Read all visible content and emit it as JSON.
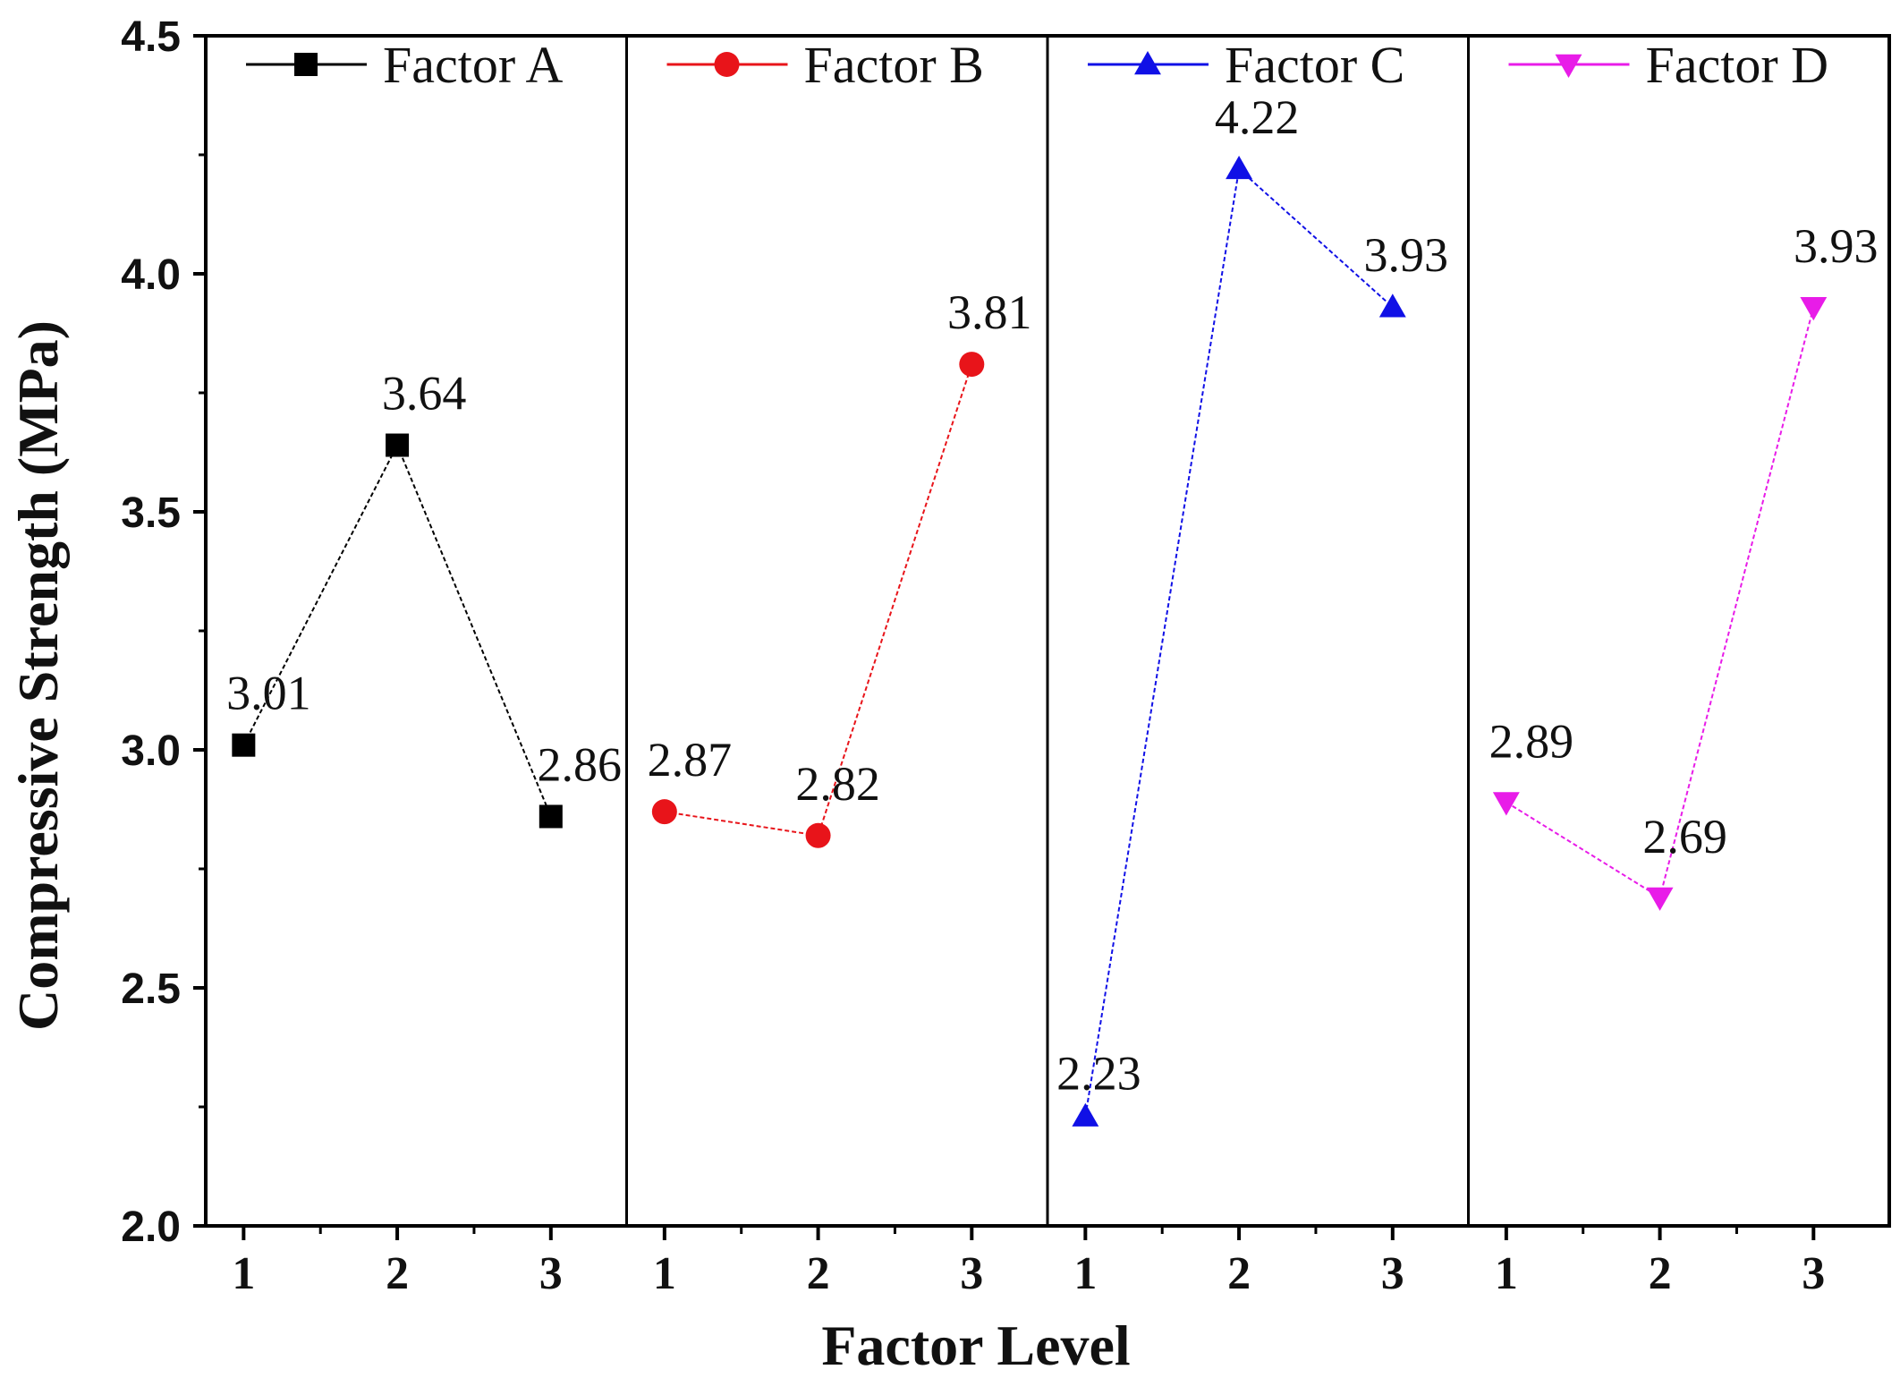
{
  "chart_data": {
    "type": "line",
    "xlabel": "Factor Level",
    "ylabel": "Compressive Strength (MPa)",
    "ylim": [
      2.0,
      4.5
    ],
    "yticks": [
      "2.0",
      "2.5",
      "3.0",
      "3.5",
      "4.0",
      "4.5"
    ],
    "ytick_values": [
      2.0,
      2.5,
      3.0,
      3.5,
      4.0,
      4.5
    ],
    "categories": [
      "1",
      "2",
      "3"
    ],
    "grid": false,
    "series": [
      {
        "name": "Factor A",
        "color": "#000000",
        "marker": "square",
        "values": [
          3.01,
          3.64,
          2.86
        ],
        "labels": [
          "3.01",
          "3.64",
          "2.86"
        ]
      },
      {
        "name": "Factor B",
        "color": "#e8141a",
        "marker": "circle",
        "values": [
          2.87,
          2.82,
          3.81
        ],
        "labels": [
          "2.87",
          "2.82",
          "3.81"
        ]
      },
      {
        "name": "Factor C",
        "color": "#1010e6",
        "marker": "triangle-up",
        "values": [
          2.23,
          4.22,
          3.93
        ],
        "labels": [
          "2.23",
          "4.22",
          "3.93"
        ]
      },
      {
        "name": "Factor D",
        "color": "#e81ce8",
        "marker": "triangle-down",
        "values": [
          2.89,
          2.69,
          3.93
        ],
        "labels": [
          "2.89",
          "2.69",
          "3.93"
        ]
      }
    ]
  }
}
